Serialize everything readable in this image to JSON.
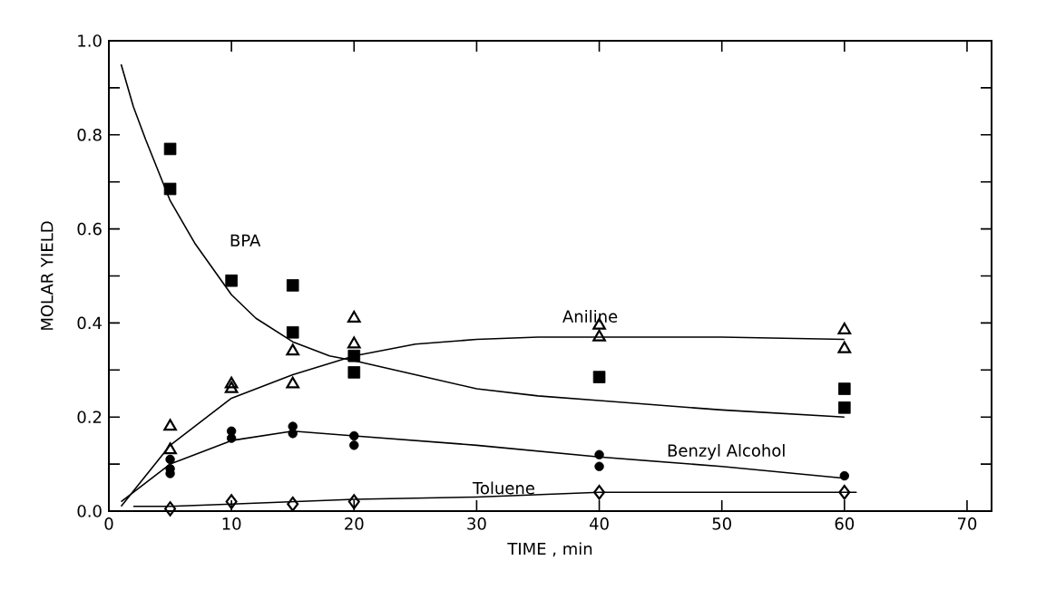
{
  "chart_data": {
    "type": "scatter",
    "xlabel": "TIME , min",
    "ylabel": "MOLAR YIELD",
    "xlim": [
      0,
      72
    ],
    "ylim": [
      0,
      1
    ],
    "xticks": [
      0,
      10,
      20,
      30,
      40,
      50,
      60,
      70
    ],
    "yticks": [
      {
        "value": 0,
        "label": "0.0"
      },
      {
        "value": 0.1,
        "label": null
      },
      {
        "value": 0.2,
        "label": "0.2"
      },
      {
        "value": 0.3,
        "label": null
      },
      {
        "value": 0.4,
        "label": "0.4"
      },
      {
        "value": 0.5,
        "label": null
      },
      {
        "value": 0.6,
        "label": "0.6"
      },
      {
        "value": 0.7,
        "label": null
      },
      {
        "value": 0.8,
        "label": "0.8"
      },
      {
        "value": 0.9,
        "label": null
      },
      {
        "value": 1,
        "label": "1.0"
      }
    ],
    "series": [
      {
        "marker": "square",
        "color": "#000000",
        "x": [
          5,
          5,
          10,
          15,
          15,
          20,
          20,
          40,
          60,
          60
        ],
        "values": [
          0.77,
          0.685,
          0.49,
          0.48,
          0.38,
          0.33,
          0.295,
          0.285,
          0.26,
          0.22
        ]
      },
      {
        "type": "line",
        "name": "BPA",
        "marker": "none",
        "color": "#000000",
        "x": [
          1,
          2,
          3,
          5,
          7,
          10,
          12,
          15,
          18,
          20,
          25,
          30,
          35,
          40,
          50,
          60
        ],
        "values": [
          0.95,
          0.86,
          0.79,
          0.66,
          0.57,
          0.46,
          0.41,
          0.36,
          0.33,
          0.32,
          0.29,
          0.26,
          0.245,
          0.235,
          0.215,
          0.2
        ]
      },
      {
        "marker": "triangle",
        "color": "#000000",
        "x": [
          5,
          5,
          10,
          10,
          15,
          15,
          20,
          20,
          40,
          40,
          60,
          60
        ],
        "values": [
          0.18,
          0.13,
          0.27,
          0.26,
          0.34,
          0.27,
          0.41,
          0.355,
          0.395,
          0.37,
          0.385,
          0.345
        ]
      },
      {
        "type": "line",
        "name": "Aniline",
        "marker": "none",
        "color": "#000000",
        "x": [
          1,
          5,
          10,
          15,
          20,
          25,
          30,
          35,
          40,
          50,
          60
        ],
        "values": [
          0.01,
          0.14,
          0.24,
          0.29,
          0.33,
          0.355,
          0.365,
          0.37,
          0.37,
          0.37,
          0.365
        ]
      },
      {
        "marker": "circle",
        "color": "#000000",
        "x": [
          5,
          5,
          5,
          10,
          10,
          15,
          15,
          20,
          20,
          40,
          40,
          60
        ],
        "values": [
          0.11,
          0.09,
          0.08,
          0.17,
          0.155,
          0.18,
          0.165,
          0.16,
          0.14,
          0.12,
          0.095,
          0.075
        ]
      },
      {
        "type": "line",
        "name": "Benzyl Alcohol",
        "marker": "none",
        "color": "#000000",
        "x": [
          1,
          5,
          10,
          15,
          20,
          30,
          40,
          50,
          60
        ],
        "values": [
          0.02,
          0.1,
          0.15,
          0.17,
          0.16,
          0.14,
          0.115,
          0.095,
          0.07
        ]
      },
      {
        "marker": "diamond",
        "color": "#000000",
        "x": [
          5,
          10,
          15,
          20,
          40,
          60
        ],
        "values": [
          0.005,
          0.02,
          0.015,
          0.02,
          0.04,
          0.04
        ]
      },
      {
        "type": "line",
        "name": "Toluene",
        "marker": "none",
        "color": "#000000",
        "x": [
          2,
          5,
          10,
          20,
          30,
          40,
          50,
          61
        ],
        "values": [
          0.01,
          0.01,
          0.015,
          0.025,
          0.03,
          0.04,
          0.04,
          0.04
        ]
      }
    ]
  }
}
